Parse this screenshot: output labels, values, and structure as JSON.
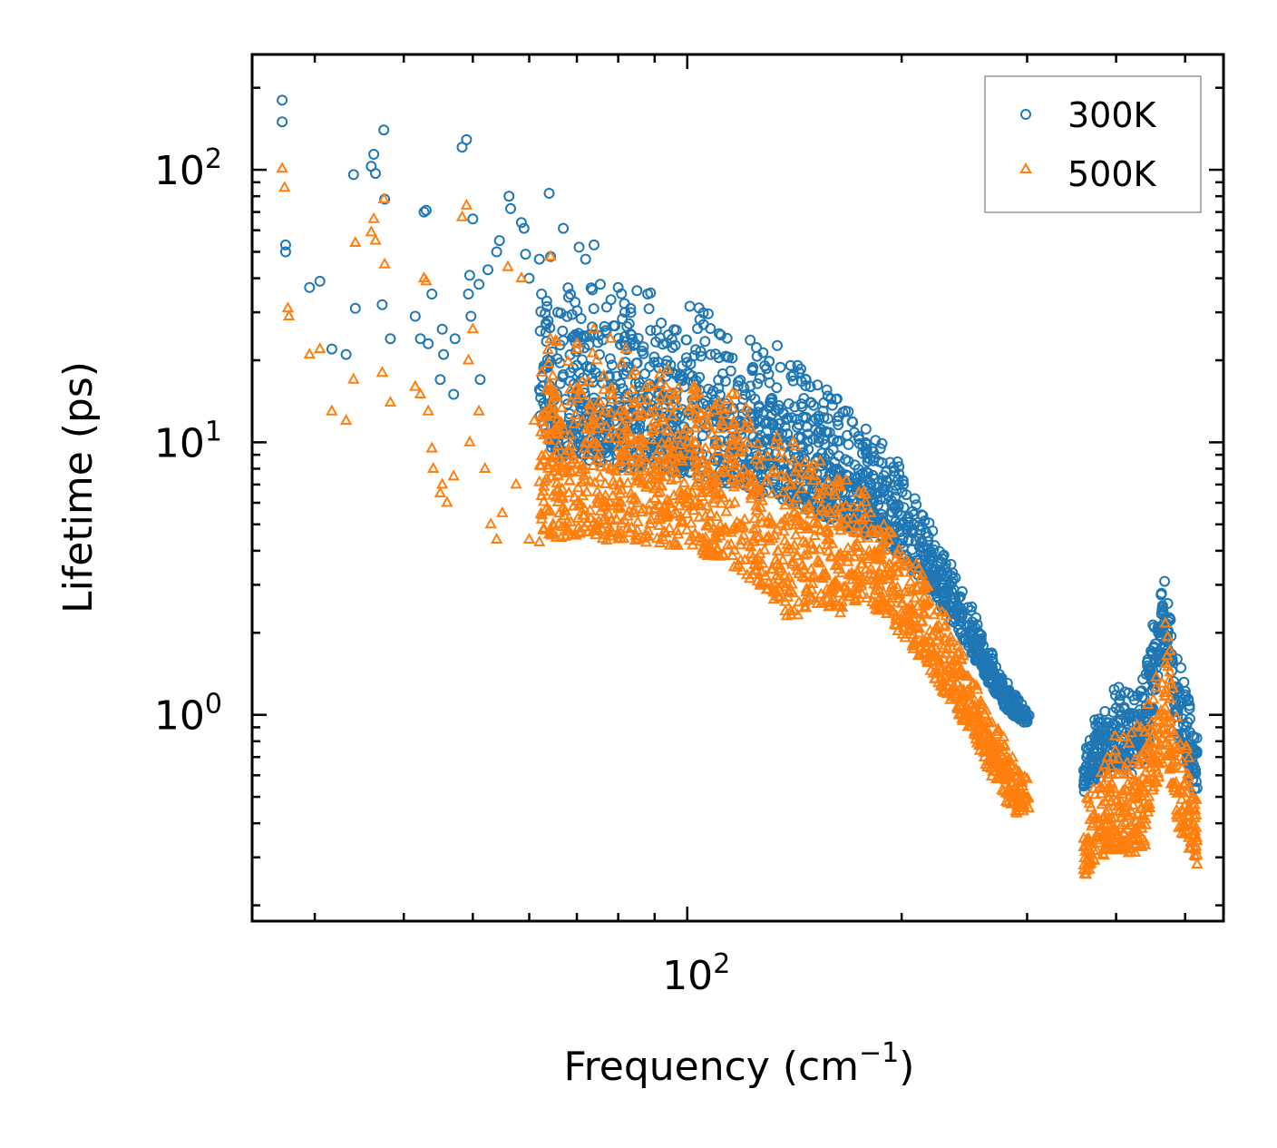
{
  "chart_data": {
    "type": "scatter",
    "title": "",
    "xlabel": "Frequency (cm",
    "xlabel_sup": "−1",
    "xlabel_end": ")",
    "ylabel": "Lifetime (ps)",
    "xscale": "log",
    "yscale": "log",
    "xlim": [
      24.5,
      566
    ],
    "ylim": [
      0.175,
      265
    ],
    "x_ticks": [
      {
        "value": 100,
        "base": "10",
        "exp": "2"
      }
    ],
    "y_ticks": [
      {
        "value": 1,
        "base": "10",
        "exp": "0"
      },
      {
        "value": 10,
        "base": "10",
        "exp": "1"
      },
      {
        "value": 100,
        "base": "10",
        "exp": "2"
      }
    ],
    "legend_position": "top-right",
    "series": [
      {
        "name": "300K",
        "marker": "circle",
        "color": "#1f77b4",
        "points": [
          [
            27,
            180
          ],
          [
            27,
            150
          ],
          [
            27.3,
            53
          ],
          [
            27.3,
            50
          ],
          [
            29.5,
            37
          ],
          [
            30.5,
            39
          ],
          [
            31.7,
            22
          ],
          [
            33.2,
            21
          ],
          [
            34,
            96
          ],
          [
            34.2,
            31
          ],
          [
            36,
            103
          ],
          [
            36.3,
            114
          ],
          [
            36.5,
            97
          ],
          [
            37.3,
            32
          ],
          [
            37.5,
            140
          ],
          [
            37.6,
            78
          ],
          [
            38.3,
            24
          ],
          [
            41.5,
            29
          ],
          [
            42.2,
            24
          ],
          [
            42.7,
            70
          ],
          [
            43,
            71
          ],
          [
            43.3,
            23
          ],
          [
            43.8,
            35
          ],
          [
            45,
            17
          ],
          [
            45.3,
            26
          ],
          [
            45.5,
            21
          ],
          [
            47,
            15
          ],
          [
            47.2,
            24
          ],
          [
            48.3,
            121
          ],
          [
            49,
            129
          ],
          [
            49.3,
            35
          ],
          [
            49.5,
            41
          ],
          [
            49.7,
            29
          ],
          [
            50,
            66
          ],
          [
            51,
            38
          ],
          [
            51.2,
            17
          ],
          [
            52.5,
            43
          ],
          [
            54,
            50
          ],
          [
            54.5,
            55
          ],
          [
            56.2,
            80
          ],
          [
            56.5,
            72
          ],
          [
            58.5,
            64
          ],
          [
            59,
            61
          ],
          [
            59.3,
            49
          ],
          [
            60,
            40
          ],
          [
            62,
            47
          ],
          [
            63.5,
            33
          ],
          [
            64,
            82
          ],
          [
            64.3,
            48
          ],
          [
            65.8,
            30
          ],
          [
            67,
            61
          ],
          [
            70.5,
            52
          ],
          [
            74,
            53
          ],
          [
            72,
            47
          ],
          [
            75.5,
            38
          ],
          [
            80,
            37
          ],
          [
            85,
            36
          ],
          [
            88,
            35
          ]
        ],
        "bands": [
          {
            "x": [
              62,
              72,
              82,
              92,
              100,
              108,
              116,
              124,
              132,
              140,
              150,
              162,
              175,
              190,
              205,
              220,
              235,
              250,
              265,
              280,
              293,
              302
            ],
            "upper": [
              40,
              38,
              38,
              36,
              34,
              32,
              30,
              27,
              24,
              21,
              18,
              15,
              12,
              10.5,
              7,
              5.3,
              3.7,
              2.6,
              1.8,
              1.35,
              1.12,
              1.03
            ],
            "lower": [
              9,
              8.5,
              8,
              8,
              7.5,
              7,
              6.8,
              6.5,
              6.3,
              6,
              5.5,
              5,
              4.7,
              4.3,
              3.5,
              2.8,
              2.2,
              1.7,
              1.3,
              1.05,
              0.95,
              0.92
            ],
            "count": 1600
          },
          {
            "x": [
              360,
              380,
              400,
              420,
              440,
              456,
              470,
              480,
              490,
              500,
              510,
              520
            ],
            "upper": [
              0.75,
              1.1,
              1.3,
              1.35,
              1.6,
              2.5,
              3.9,
              2.5,
              1.7,
              1.45,
              1.1,
              0.9
            ],
            "lower": [
              0.5,
              0.62,
              0.65,
              0.6,
              0.7,
              1.3,
              1.8,
              1.2,
              0.8,
              0.75,
              0.55,
              0.5
            ],
            "count": 420
          }
        ]
      },
      {
        "name": "500K",
        "marker": "triangle",
        "color": "#ff7f0e",
        "points": [
          [
            27,
            101
          ],
          [
            27.2,
            86
          ],
          [
            27.5,
            31
          ],
          [
            27.6,
            29
          ],
          [
            29.5,
            21
          ],
          [
            30.5,
            22
          ],
          [
            31.7,
            13
          ],
          [
            33.2,
            12
          ],
          [
            34,
            17
          ],
          [
            34.2,
            54
          ],
          [
            36,
            59
          ],
          [
            36.3,
            66
          ],
          [
            36.5,
            55
          ],
          [
            37.3,
            18
          ],
          [
            37.5,
            78
          ],
          [
            37.6,
            45
          ],
          [
            38.3,
            14
          ],
          [
            41.5,
            16
          ],
          [
            42.2,
            15
          ],
          [
            42.7,
            40
          ],
          [
            43,
            39
          ],
          [
            43.3,
            13
          ],
          [
            43.8,
            9.5
          ],
          [
            44,
            8
          ],
          [
            45,
            6.5
          ],
          [
            45.3,
            7
          ],
          [
            46,
            6
          ],
          [
            47,
            7.5
          ],
          [
            48.3,
            67
          ],
          [
            49,
            74
          ],
          [
            49.3,
            20
          ],
          [
            49.5,
            10
          ],
          [
            50,
            26
          ],
          [
            51,
            13
          ],
          [
            52,
            8
          ],
          [
            53,
            5
          ],
          [
            54,
            4.4
          ],
          [
            55,
            5.5
          ],
          [
            56,
            44
          ],
          [
            57.5,
            7
          ],
          [
            58.5,
            40
          ],
          [
            60,
            4.4
          ],
          [
            61,
            12
          ],
          [
            62,
            4.3
          ],
          [
            64,
            4.6
          ],
          [
            64.3,
            48
          ],
          [
            66,
            5
          ],
          [
            68,
            4.7
          ],
          [
            70,
            22
          ],
          [
            74,
            26
          ],
          [
            78,
            24
          ],
          [
            82,
            22
          ]
        ],
        "bands": [
          {
            "x": [
              62,
              72,
              82,
              92,
              100,
              108,
              116,
              124,
              132,
              140,
              150,
              162,
              175,
              190,
              205,
              220,
              235,
              250,
              265,
              280,
              293,
              302
            ],
            "upper": [
              26,
              23,
              21,
              20,
              19,
              18,
              16,
              14,
              12.5,
              11,
              9.5,
              8.3,
              7,
              6,
              4.4,
              3.1,
              2.2,
              1.5,
              1.05,
              0.82,
              0.66,
              0.6
            ],
            "lower": [
              4.5,
              4.4,
              4.3,
              4.2,
              4,
              3.8,
              3.5,
              3,
              2.6,
              2.2,
              2.6,
              2.3,
              2.6,
              2.3,
              1.8,
              1.4,
              1.1,
              0.85,
              0.62,
              0.48,
              0.42,
              0.45
            ],
            "count": 1600
          },
          {
            "x": [
              360,
              380,
              400,
              420,
              440,
              456,
              470,
              480,
              490,
              500,
              510,
              520
            ],
            "upper": [
              0.48,
              0.7,
              0.88,
              0.95,
              1.1,
              1.55,
              2.3,
              1.5,
              1.05,
              0.95,
              0.75,
              0.6
            ],
            "lower": [
              0.25,
              0.3,
              0.32,
              0.3,
              0.33,
              0.55,
              0.7,
              0.5,
              0.38,
              0.35,
              0.3,
              0.28
            ],
            "count": 420
          }
        ]
      }
    ]
  }
}
